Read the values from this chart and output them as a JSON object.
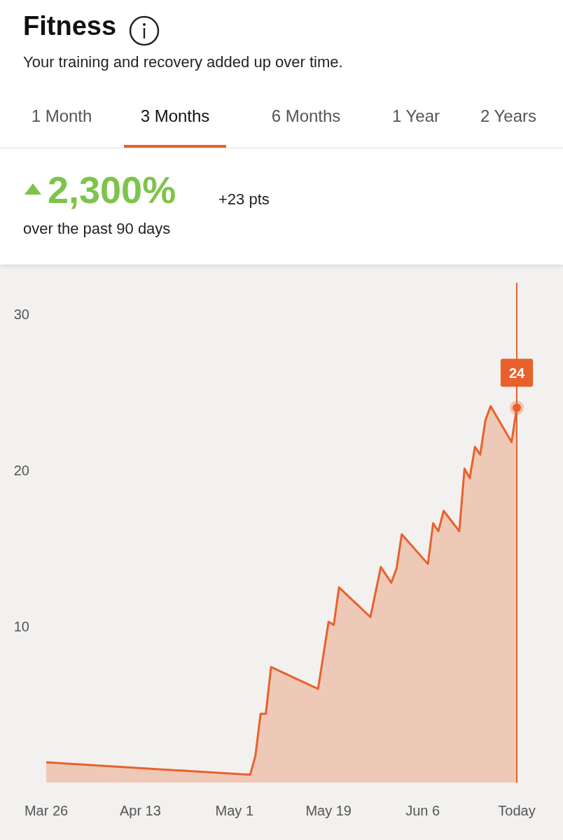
{
  "chart_data": {
    "type": "area",
    "title": "Fitness",
    "subtitle": "Your training and recovery added up over time.",
    "annotations": [
      "1 Month",
      "3 Months",
      "6 Months",
      "1 Year",
      "2 Years",
      "2,300%",
      "+23 pts",
      "over the past 90 days"
    ],
    "x": [
      "--03-26",
      "--05-04",
      "--05-05",
      "--05-06",
      "--05-07",
      "--05-08",
      "--05-17",
      "--05-19",
      "--05-20",
      "--05-21",
      "--05-27",
      "--05-29",
      "--05-31",
      "--06-01",
      "--06-02",
      "--06-07",
      "--06-08",
      "--06-09",
      "--06-10",
      "--06-13",
      "--06-14",
      "--06-15",
      "--06-16",
      "--06-17",
      "--06-18",
      "--06-19",
      "--06-23",
      "--06-24"
    ],
    "series": [
      {
        "color": "#e8612c",
        "values": [
          1.3,
          0.5,
          1.7,
          4.4,
          4.4,
          7.4,
          6.0,
          10.3,
          10.1,
          12.5,
          10.6,
          13.8,
          12.8,
          13.7,
          15.9,
          14.0,
          16.6,
          16.1,
          17.4,
          16.1,
          20.1,
          19.5,
          21.5,
          21.0,
          23.2,
          24.1,
          21.8,
          24
        ],
        "value_labels": [
          null,
          null,
          null,
          null,
          null,
          null,
          null,
          null,
          null,
          null,
          null,
          null,
          null,
          null,
          null,
          null,
          null,
          null,
          null,
          null,
          null,
          null,
          null,
          null,
          null,
          null,
          null,
          "24"
        ]
      }
    ],
    "xlim": [
      "--03-26",
      "--06-24"
    ],
    "xticks": [
      {
        "value": "--03-26",
        "label": "Mar 26"
      },
      {
        "value": "--04-13",
        "label": "Apr 13"
      },
      {
        "value": "--05-01",
        "label": "May 1"
      },
      {
        "value": "--05-19",
        "label": "May 19"
      },
      {
        "value": "--06-06",
        "label": "Jun 6"
      },
      {
        "value": "--06-24",
        "label": "Today"
      }
    ],
    "ylim": [
      0,
      32
    ],
    "yticks": [
      10,
      20,
      30
    ],
    "grid": false,
    "ref_lines": [
      {
        "axis": "x",
        "value": "--06-24",
        "color": "#e8612c"
      }
    ]
  }
}
